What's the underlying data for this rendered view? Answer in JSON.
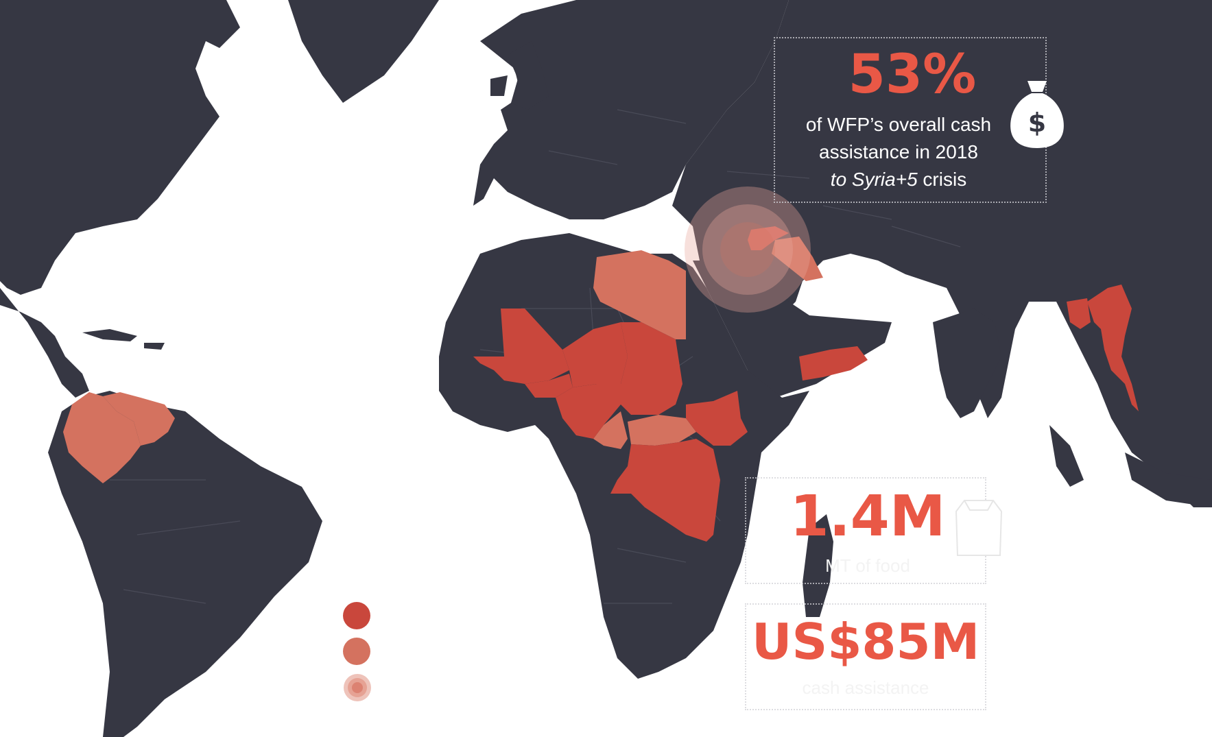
{
  "colors": {
    "land": "#363743",
    "ocean": "#ffffff",
    "high": "#c9473c",
    "medium": "#d4725f",
    "accent": "#e95846"
  },
  "stat_cash_share": {
    "value": "53%",
    "caption_line1": "of WFP’s overall cash",
    "caption_line2": "assistance in 2018",
    "caption_line3_italic": "to Syria+5",
    "caption_line3_rest": " crisis",
    "icon": "money-bag-dollar-icon"
  },
  "stat_food": {
    "value": "1.4M",
    "caption": "MT of food",
    "icon": "food-sack-icon"
  },
  "stat_cash": {
    "value": "US$85M",
    "caption": "cash assistance"
  },
  "legend": [
    {
      "style": "high",
      "color": "#c9473c"
    },
    {
      "style": "medium",
      "color": "#d4725f"
    },
    {
      "style": "regional-crisis",
      "color": "#e8a79b"
    }
  ],
  "highlighted_regions": {
    "high": [
      "Mali",
      "Burkina Faso",
      "Niger",
      "Chad",
      "Nigeria",
      "Democratic Republic of the Congo",
      "South Sudan",
      "Yemen",
      "Myanmar",
      "Bangladesh",
      "Syria"
    ],
    "medium": [
      "Libya",
      "Colombia",
      "Venezuela",
      "Cameroon",
      "Central African Republic",
      "Iraq"
    ],
    "regional_crisis": [
      "Syria+5"
    ]
  }
}
